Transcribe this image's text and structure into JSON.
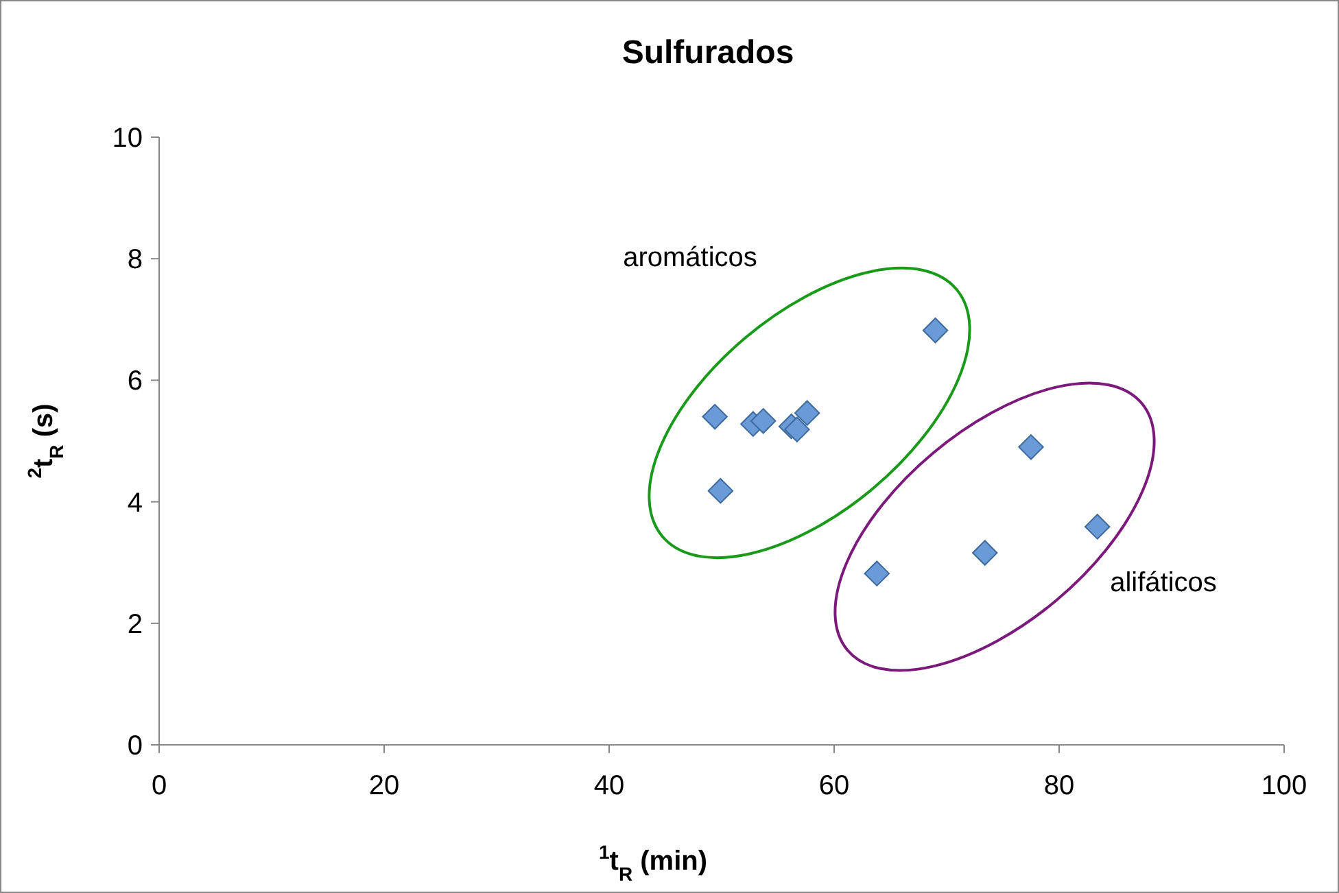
{
  "chart_data": {
    "type": "scatter",
    "title": "Sulfurados",
    "xlabel": "$^{1}$t$_{R}$ (min)",
    "ylabel": "$^{2}$t$_{R}$ (s)",
    "xlim": [
      0,
      100
    ],
    "xticks": [
      0,
      20,
      40,
      60,
      80,
      100
    ],
    "ylim": [
      0,
      10
    ],
    "yticks": [
      0,
      2,
      4,
      6,
      8,
      10
    ],
    "grid": false,
    "marker": "diamond",
    "series": [
      {
        "color": "#6b9bd6",
        "x": [
          49.4,
          49.9,
          52.8,
          53.7,
          56.2,
          56.7,
          57.6,
          69.0,
          63.8,
          73.4,
          77.5,
          83.4
        ],
        "values": [
          5.4,
          4.18,
          5.28,
          5.33,
          5.24,
          5.19,
          5.46,
          6.82,
          2.82,
          3.16,
          4.9,
          3.59
        ]
      }
    ],
    "annotations": [
      "aromáticos",
      "alifáticos"
    ]
  }
}
